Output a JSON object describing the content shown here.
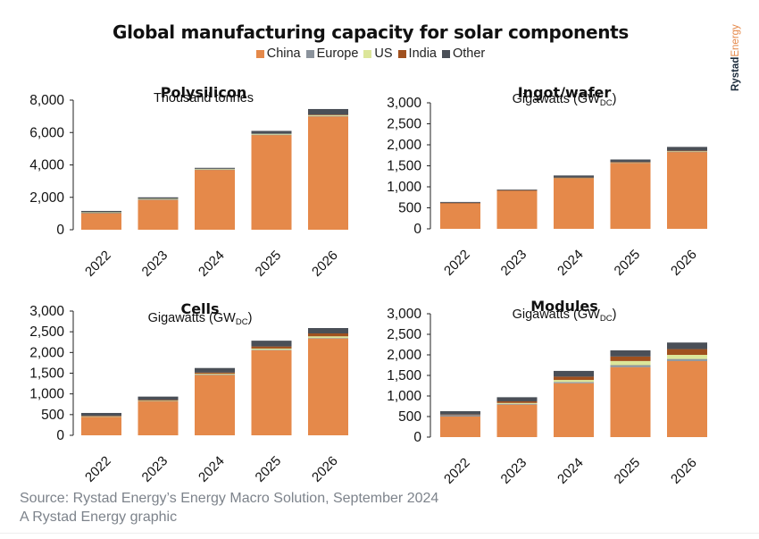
{
  "title": "Global manufacturing capacity for solar components",
  "brand": {
    "primary": "Rystad",
    "secondary": "Energy"
  },
  "legend": [
    {
      "label": "China",
      "color": "#E5894A"
    },
    {
      "label": "Europe",
      "color": "#8B939C"
    },
    {
      "label": "US",
      "color": "#DCE69A"
    },
    {
      "label": "India",
      "color": "#A0501E"
    },
    {
      "label": "Other",
      "color": "#4A4F57"
    }
  ],
  "footer": {
    "source": "Source: Rystad Energy’s Energy Macro Solution, September 2024",
    "credit": "A Rystad Energy graphic"
  },
  "chart_data": [
    {
      "type": "bar",
      "stacked": true,
      "title": "Polysilicon",
      "subtitle": "Thousand tonnes",
      "subtitle_sub": "",
      "categories": [
        "2022",
        "2023",
        "2024",
        "2025",
        "2026"
      ],
      "ylim": [
        0,
        8000
      ],
      "yticks": [
        0,
        2000,
        4000,
        6000,
        8000
      ],
      "ytick_labels": [
        "0",
        "2,000",
        "4,000",
        "6,000",
        "8,000"
      ],
      "series": [
        {
          "name": "China",
          "values": [
            1030,
            1850,
            3700,
            5850,
            7000
          ]
        },
        {
          "name": "Europe",
          "values": [
            20,
            20,
            20,
            20,
            20
          ]
        },
        {
          "name": "US",
          "values": [
            30,
            40,
            40,
            50,
            70
          ]
        },
        {
          "name": "India",
          "values": [
            0,
            0,
            0,
            0,
            10
          ]
        },
        {
          "name": "Other",
          "values": [
            80,
            90,
            60,
            180,
            350
          ]
        }
      ]
    },
    {
      "type": "bar",
      "stacked": true,
      "title": "Ingot/wafer",
      "subtitle": "Gigawatts (GW",
      "subtitle_sub": "DC",
      "categories": [
        "2022",
        "2023",
        "2024",
        "2025",
        "2026"
      ],
      "ylim": [
        0,
        3000
      ],
      "yticks": [
        0,
        500,
        1000,
        1500,
        2000,
        2500,
        3000
      ],
      "ytick_labels": [
        "0",
        "500",
        "1,000",
        "1,500",
        "2,000",
        "2,500",
        "3,000"
      ],
      "series": [
        {
          "name": "China",
          "values": [
            615,
            915,
            1210,
            1575,
            1835
          ]
        },
        {
          "name": "Europe",
          "values": [
            2,
            2,
            3,
            3,
            3
          ]
        },
        {
          "name": "US",
          "values": [
            0,
            0,
            2,
            5,
            10
          ]
        },
        {
          "name": "India",
          "values": [
            3,
            3,
            5,
            7,
            12
          ]
        },
        {
          "name": "Other",
          "values": [
            20,
            15,
            50,
            60,
            90
          ]
        }
      ]
    },
    {
      "type": "bar",
      "stacked": true,
      "title": "Cells",
      "subtitle": "Gigawatts (GW",
      "subtitle_sub": "DC",
      "categories": [
        "2022",
        "2023",
        "2024",
        "2025",
        "2026"
      ],
      "ylim": [
        0,
        3000
      ],
      "yticks": [
        0,
        500,
        1000,
        1500,
        2000,
        2500,
        3000
      ],
      "ytick_labels": [
        "0",
        "500",
        "1,000",
        "1,500",
        "2,000",
        "2,500",
        "3,000"
      ],
      "series": [
        {
          "name": "China",
          "values": [
            450,
            825,
            1460,
            2060,
            2340
          ]
        },
        {
          "name": "Europe",
          "values": [
            5,
            5,
            5,
            5,
            10
          ]
        },
        {
          "name": "US",
          "values": [
            5,
            5,
            20,
            30,
            40
          ]
        },
        {
          "name": "India",
          "values": [
            10,
            20,
            30,
            50,
            70
          ]
        },
        {
          "name": "Other",
          "values": [
            70,
            80,
            110,
            140,
            130
          ]
        }
      ]
    },
    {
      "type": "bar",
      "stacked": true,
      "title": "Modules",
      "subtitle": "Gigawatts (GW",
      "subtitle_sub": "DC",
      "categories": [
        "2022",
        "2023",
        "2024",
        "2025",
        "2026"
      ],
      "ylim": [
        0,
        3000
      ],
      "yticks": [
        0,
        500,
        1000,
        1500,
        2000,
        2500,
        3000
      ],
      "ytick_labels": [
        "0",
        "500",
        "1,000",
        "1,500",
        "2,000",
        "2,500",
        "3,000"
      ],
      "series": [
        {
          "name": "China",
          "values": [
            500,
            790,
            1310,
            1700,
            1850
          ]
        },
        {
          "name": "Europe",
          "values": [
            40,
            20,
            30,
            50,
            50
          ]
        },
        {
          "name": "US",
          "values": [
            0,
            20,
            50,
            100,
            100
          ]
        },
        {
          "name": "India",
          "values": [
            10,
            40,
            80,
            110,
            140
          ]
        },
        {
          "name": "Other",
          "values": [
            80,
            100,
            140,
            150,
            160
          ]
        }
      ]
    }
  ]
}
